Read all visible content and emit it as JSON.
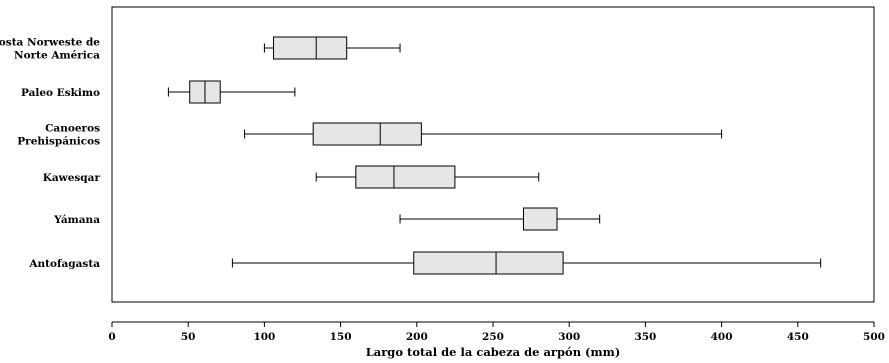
{
  "chart_data": {
    "type": "boxplot",
    "orientation": "horizontal",
    "title": "",
    "xlabel": "Largo total de la cabeza de arpón (mm)",
    "ylabel": "",
    "xlim": [
      0,
      500
    ],
    "xticks": [
      0,
      50,
      100,
      150,
      200,
      250,
      300,
      350,
      400,
      450,
      500
    ],
    "grid": false,
    "legend": "none",
    "box_fill": "#e6e6e6",
    "line_color": "#000000",
    "categories": [
      {
        "label": [
          "Costa Norweste de",
          "Norte América"
        ],
        "min": 100,
        "q1": 106,
        "median": 134,
        "q3": 154,
        "max": 189
      },
      {
        "label": [
          "Paleo Eskimo"
        ],
        "min": 37,
        "q1": 51,
        "median": 61,
        "q3": 71,
        "max": 120
      },
      {
        "label": [
          "Canoeros",
          "Prehispánicos"
        ],
        "min": 87,
        "q1": 132,
        "median": 176,
        "q3": 203,
        "max": 400
      },
      {
        "label": [
          "Kawesqar"
        ],
        "min": 134,
        "q1": 160,
        "median": 185,
        "q3": 225,
        "max": 280
      },
      {
        "label": [
          "Yámana"
        ],
        "min": 189,
        "q1": 270,
        "median": 270,
        "q3": 292,
        "max": 320
      },
      {
        "label": [
          "Antofagasta"
        ],
        "min": 79,
        "q1": 198,
        "median": 252,
        "q3": 296,
        "max": 465
      }
    ]
  }
}
